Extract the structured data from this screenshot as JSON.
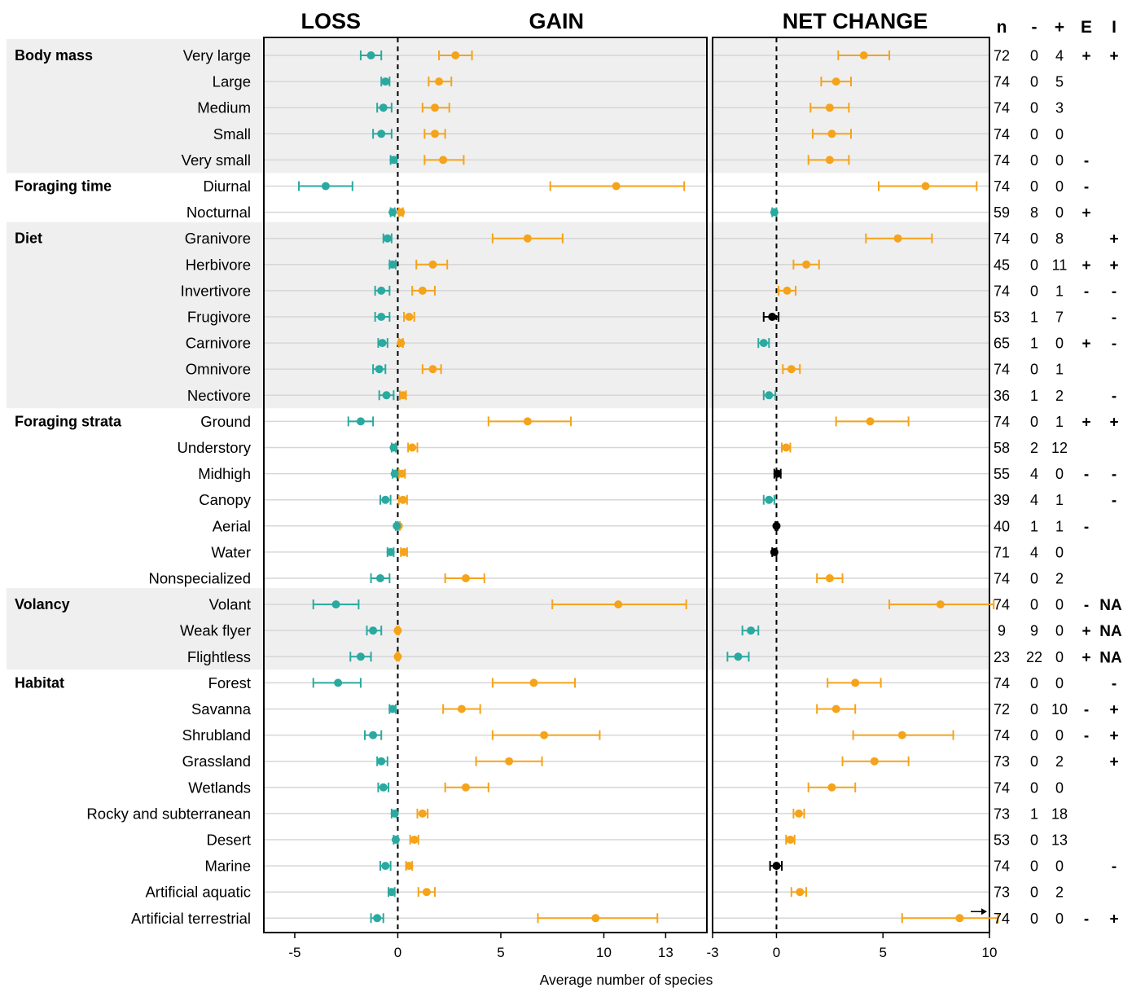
{
  "chart_data": {
    "type": "forest-plot",
    "panels": [
      {
        "id": "loss_gain",
        "title_left": "LOSS",
        "title_right": "GAIN",
        "xlim": [
          -6.5,
          15
        ],
        "xticks": [
          -5,
          0,
          5,
          10,
          13
        ],
        "xtick_labels": [
          "-5",
          "0",
          "5",
          "10",
          "13"
        ]
      },
      {
        "id": "net",
        "title": "NET CHANGE",
        "xlim": [
          -3,
          10
        ],
        "xticks": [
          -3,
          0,
          5,
          10
        ],
        "xtick_labels": [
          "-3",
          "0",
          "5",
          "10"
        ]
      }
    ],
    "xlabel": "Average number of species",
    "column_headers": [
      "n",
      "-",
      "+",
      "E",
      "I"
    ],
    "colors": {
      "loss": "#2aa9a0",
      "gain": "#f5a31a",
      "neutral": "#000000",
      "band": "#efefef",
      "gridline": "#d6d6d6"
    },
    "groups": [
      {
        "name": "Body mass",
        "band": true,
        "rows": [
          {
            "label": "Very large",
            "loss": [
              -1.3,
              -1.8,
              -0.8
            ],
            "gain": [
              2.8,
              2.0,
              3.6
            ],
            "net": [
              4.1,
              2.9,
              5.3
            ],
            "net_color": "gain",
            "n": "72",
            "minus": "0",
            "plus": "4",
            "E": "+",
            "I": "+"
          },
          {
            "label": "Large",
            "loss": [
              -0.6,
              -0.8,
              -0.4
            ],
            "gain": [
              2.0,
              1.5,
              2.6
            ],
            "net": [
              2.8,
              2.1,
              3.5
            ],
            "net_color": "gain",
            "n": "74",
            "minus": "0",
            "plus": "5",
            "E": "",
            "I": ""
          },
          {
            "label": "Medium",
            "loss": [
              -0.7,
              -1.0,
              -0.3
            ],
            "gain": [
              1.8,
              1.2,
              2.5
            ],
            "net": [
              2.5,
              1.6,
              3.4
            ],
            "net_color": "gain",
            "n": "74",
            "minus": "0",
            "plus": "3",
            "E": "",
            "I": ""
          },
          {
            "label": "Small",
            "loss": [
              -0.8,
              -1.2,
              -0.3
            ],
            "gain": [
              1.8,
              1.3,
              2.3
            ],
            "net": [
              2.6,
              1.7,
              3.5
            ],
            "net_color": "gain",
            "n": "74",
            "minus": "0",
            "plus": "0",
            "E": "",
            "I": ""
          },
          {
            "label": "Very small",
            "loss": [
              -0.2,
              -0.35,
              -0.05
            ],
            "gain": [
              2.2,
              1.3,
              3.2
            ],
            "net": [
              2.5,
              1.5,
              3.4
            ],
            "net_color": "gain",
            "n": "74",
            "minus": "0",
            "plus": "0",
            "E": "-",
            "I": ""
          }
        ]
      },
      {
        "name": "Foraging time",
        "band": false,
        "rows": [
          {
            "label": "Diurnal",
            "loss": [
              -3.5,
              -4.8,
              -2.2
            ],
            "gain": [
              10.6,
              7.4,
              13.9
            ],
            "net": [
              7.0,
              4.8,
              9.4
            ],
            "net_color": "gain",
            "n": "74",
            "minus": "0",
            "plus": "0",
            "E": "-",
            "I": ""
          },
          {
            "label": "Nocturnal",
            "loss": [
              -0.25,
              -0.35,
              -0.15
            ],
            "gain": [
              0.15,
              0.05,
              0.25
            ],
            "net": [
              -0.1,
              -0.2,
              0.0
            ],
            "net_color": "loss",
            "n": "59",
            "minus": "8",
            "plus": "0",
            "E": "+",
            "I": ""
          }
        ]
      },
      {
        "name": "Diet",
        "band": true,
        "rows": [
          {
            "label": "Granivore",
            "loss": [
              -0.5,
              -0.7,
              -0.3
            ],
            "gain": [
              6.3,
              4.6,
              8.0
            ],
            "net": [
              5.7,
              4.2,
              7.3
            ],
            "net_color": "gain",
            "n": "74",
            "minus": "0",
            "plus": "8",
            "E": "",
            "I": "+"
          },
          {
            "label": "Herbivore",
            "loss": [
              -0.25,
              -0.4,
              -0.1
            ],
            "gain": [
              1.7,
              0.9,
              2.4
            ],
            "net": [
              1.4,
              0.8,
              2.0
            ],
            "net_color": "gain",
            "n": "45",
            "minus": "0",
            "plus": "11",
            "E": "+",
            "I": "+"
          },
          {
            "label": "Invertivore",
            "loss": [
              -0.8,
              -1.1,
              -0.4
            ],
            "gain": [
              1.2,
              0.7,
              1.8
            ],
            "net": [
              0.5,
              0.1,
              0.9
            ],
            "net_color": "gain",
            "n": "74",
            "minus": "0",
            "plus": "1",
            "E": "-",
            "I": "-"
          },
          {
            "label": "Frugivore",
            "loss": [
              -0.8,
              -1.1,
              -0.4
            ],
            "gain": [
              0.55,
              0.3,
              0.8
            ],
            "net": [
              -0.2,
              -0.6,
              0.1
            ],
            "net_color": "neutral",
            "n": "53",
            "minus": "1",
            "plus": "7",
            "E": "",
            "I": "-"
          },
          {
            "label": "Carnivore",
            "loss": [
              -0.75,
              -0.95,
              -0.5
            ],
            "gain": [
              0.15,
              0.05,
              0.25
            ],
            "net": [
              -0.6,
              -0.85,
              -0.35
            ],
            "net_color": "loss",
            "n": "65",
            "minus": "1",
            "plus": "0",
            "E": "+",
            "I": "-"
          },
          {
            "label": "Omnivore",
            "loss": [
              -0.9,
              -1.2,
              -0.6
            ],
            "gain": [
              1.7,
              1.2,
              2.1
            ],
            "net": [
              0.7,
              0.3,
              1.1
            ],
            "net_color": "gain",
            "n": "74",
            "minus": "0",
            "plus": "1",
            "E": "",
            "I": ""
          },
          {
            "label": "Nectivore",
            "loss": [
              -0.55,
              -0.9,
              -0.2
            ],
            "gain": [
              0.25,
              0.1,
              0.4
            ],
            "net": [
              -0.35,
              -0.6,
              -0.05
            ],
            "net_color": "loss",
            "n": "36",
            "minus": "1",
            "plus": "2",
            "E": "",
            "I": "-"
          }
        ]
      },
      {
        "name": "Foraging strata",
        "band": false,
        "rows": [
          {
            "label": "Ground",
            "loss": [
              -1.8,
              -2.4,
              -1.2
            ],
            "gain": [
              6.3,
              4.4,
              8.4
            ],
            "net": [
              4.4,
              2.8,
              6.2
            ],
            "net_color": "gain",
            "n": "74",
            "minus": "0",
            "plus": "1",
            "E": "+",
            "I": "+"
          },
          {
            "label": "Understory",
            "loss": [
              -0.2,
              -0.3,
              -0.1
            ],
            "gain": [
              0.7,
              0.5,
              0.95
            ],
            "net": [
              0.45,
              0.25,
              0.65
            ],
            "net_color": "gain",
            "n": "58",
            "minus": "2",
            "plus": "12",
            "E": "",
            "I": ""
          },
          {
            "label": "Midhigh",
            "loss": [
              -0.15,
              -0.25,
              -0.05
            ],
            "gain": [
              0.2,
              0.05,
              0.35
            ],
            "net": [
              0.05,
              -0.1,
              0.2
            ],
            "net_color": "neutral",
            "n": "55",
            "minus": "4",
            "plus": "0",
            "E": "-",
            "I": "-"
          },
          {
            "label": "Canopy",
            "loss": [
              -0.6,
              -0.85,
              -0.35
            ],
            "gain": [
              0.25,
              0.05,
              0.45
            ],
            "net": [
              -0.35,
              -0.6,
              -0.1
            ],
            "net_color": "loss",
            "n": "39",
            "minus": "4",
            "plus": "1",
            "E": "",
            "I": "-"
          },
          {
            "label": "Aerial",
            "loss": [
              -0.05,
              -0.1,
              0.0
            ],
            "gain": [
              0.05,
              0.0,
              0.1
            ],
            "net": [
              0.0,
              -0.05,
              0.05
            ],
            "net_color": "neutral",
            "n": "40",
            "minus": "1",
            "plus": "1",
            "E": "-",
            "I": ""
          },
          {
            "label": "Water",
            "loss": [
              -0.35,
              -0.5,
              -0.2
            ],
            "gain": [
              0.3,
              0.15,
              0.45
            ],
            "net": [
              -0.1,
              -0.2,
              0.0
            ],
            "net_color": "neutral",
            "n": "71",
            "minus": "4",
            "plus": "0",
            "E": "",
            "I": ""
          },
          {
            "label": "Nonspecialized",
            "loss": [
              -0.85,
              -1.3,
              -0.4
            ],
            "gain": [
              3.3,
              2.3,
              4.2
            ],
            "net": [
              2.5,
              1.9,
              3.1
            ],
            "net_color": "gain",
            "n": "74",
            "minus": "0",
            "plus": "2",
            "E": "",
            "I": ""
          }
        ]
      },
      {
        "name": "Volancy",
        "band": true,
        "rows": [
          {
            "label": "Volant",
            "loss": [
              -3.0,
              -4.1,
              -1.9
            ],
            "gain": [
              10.7,
              7.5,
              14.0
            ],
            "net": [
              7.7,
              5.3,
              10.2
            ],
            "net_color": "gain",
            "n": "74",
            "minus": "0",
            "plus": "0",
            "E": "-",
            "I": "NA"
          },
          {
            "label": "Weak flyer",
            "loss": [
              -1.2,
              -1.5,
              -0.8
            ],
            "gain": [
              0.0,
              -0.05,
              0.05
            ],
            "net": [
              -1.2,
              -1.6,
              -0.85
            ],
            "net_color": "loss",
            "n": "9",
            "minus": "9",
            "plus": "0",
            "E": "+",
            "I": "NA"
          },
          {
            "label": "Flightless",
            "loss": [
              -1.8,
              -2.3,
              -1.3
            ],
            "gain": [
              0.0,
              -0.05,
              0.05
            ],
            "net": [
              -1.8,
              -2.3,
              -1.3
            ],
            "net_color": "loss",
            "n": "23",
            "minus": "22",
            "plus": "0",
            "E": "+",
            "I": "NA"
          }
        ]
      },
      {
        "name": "Habitat",
        "band": false,
        "rows": [
          {
            "label": "Forest",
            "loss": [
              -2.9,
              -4.1,
              -1.8
            ],
            "gain": [
              6.6,
              4.6,
              8.6
            ],
            "net": [
              3.7,
              2.4,
              4.9
            ],
            "net_color": "gain",
            "n": "74",
            "minus": "0",
            "plus": "0",
            "E": "",
            "I": "-"
          },
          {
            "label": "Savanna",
            "loss": [
              -0.25,
              -0.4,
              -0.1
            ],
            "gain": [
              3.1,
              2.2,
              4.0
            ],
            "net": [
              2.8,
              1.9,
              3.7
            ],
            "net_color": "gain",
            "n": "72",
            "minus": "0",
            "plus": "10",
            "E": "-",
            "I": "+"
          },
          {
            "label": "Shrubland",
            "loss": [
              -1.2,
              -1.6,
              -0.8
            ],
            "gain": [
              7.1,
              4.6,
              9.8
            ],
            "net": [
              5.9,
              3.6,
              8.3
            ],
            "net_color": "gain",
            "n": "74",
            "minus": "0",
            "plus": "0",
            "E": "-",
            "I": "+"
          },
          {
            "label": "Grassland",
            "loss": [
              -0.8,
              -1.0,
              -0.5
            ],
            "gain": [
              5.4,
              3.8,
              7.0
            ],
            "net": [
              4.6,
              3.1,
              6.2
            ],
            "net_color": "gain",
            "n": "73",
            "minus": "0",
            "plus": "2",
            "E": "",
            "I": "+"
          },
          {
            "label": "Wetlands",
            "loss": [
              -0.7,
              -0.95,
              -0.45
            ],
            "gain": [
              3.3,
              2.3,
              4.4
            ],
            "net": [
              2.6,
              1.5,
              3.7
            ],
            "net_color": "gain",
            "n": "74",
            "minus": "0",
            "plus": "0",
            "E": "",
            "I": ""
          },
          {
            "label": "Rocky and subterranean",
            "loss": [
              -0.15,
              -0.3,
              -0.05
            ],
            "gain": [
              1.2,
              0.95,
              1.45
            ],
            "net": [
              1.05,
              0.8,
              1.3
            ],
            "net_color": "gain",
            "n": "73",
            "minus": "1",
            "plus": "18",
            "E": "",
            "I": ""
          },
          {
            "label": "Desert",
            "loss": [
              -0.1,
              -0.2,
              0.0
            ],
            "gain": [
              0.8,
              0.6,
              1.0
            ],
            "net": [
              0.65,
              0.45,
              0.85
            ],
            "net_color": "gain",
            "n": "53",
            "minus": "0",
            "plus": "13",
            "E": "",
            "I": ""
          },
          {
            "label": "Marine",
            "loss": [
              -0.6,
              -0.85,
              -0.35
            ],
            "gain": [
              0.55,
              0.4,
              0.7
            ],
            "net": [
              0.0,
              -0.3,
              0.25
            ],
            "net_color": "neutral",
            "n": "74",
            "minus": "0",
            "plus": "0",
            "E": "",
            "I": "-"
          },
          {
            "label": "Artificial aquatic",
            "loss": [
              -0.3,
              -0.45,
              -0.15
            ],
            "gain": [
              1.4,
              1.0,
              1.8
            ],
            "net": [
              1.1,
              0.7,
              1.4
            ],
            "net_color": "gain",
            "n": "73",
            "minus": "0",
            "plus": "2",
            "E": "",
            "I": ""
          },
          {
            "label": "Artificial terrestrial",
            "loss": [
              -1.0,
              -1.3,
              -0.7
            ],
            "gain": [
              9.6,
              6.8,
              12.6
            ],
            "net": [
              8.6,
              5.9,
              10.4
            ],
            "net_color": "gain",
            "n": "74",
            "minus": "0",
            "plus": "0",
            "E": "-",
            "I": "+"
          }
        ]
      }
    ]
  }
}
